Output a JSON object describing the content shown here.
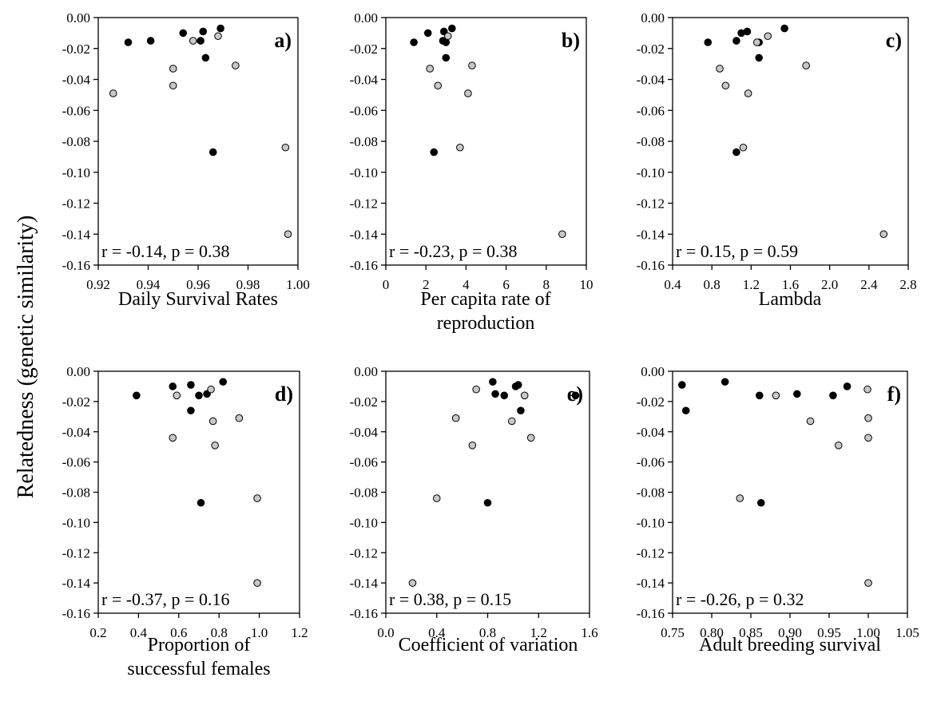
{
  "figure": {
    "y_axis_label": "Relatedness (genetic similarity)"
  },
  "chart_data": [
    {
      "type": "scatter",
      "panel": "a)",
      "xlabel": "Daily Survival Rates",
      "ylabel": "Relatedness (genetic similarity)",
      "xlim": [
        0.92,
        1.0
      ],
      "ylim": [
        -0.16,
        0.0
      ],
      "xticks": [
        "0.92",
        "0.94",
        "0.96",
        "0.98",
        "1.00"
      ],
      "yticks": [
        "0.00",
        "-0.02",
        "-0.04",
        "-0.06",
        "-0.08",
        "-0.10",
        "-0.12",
        "-0.14",
        "-0.16"
      ],
      "stat": "r  = -0.14, p = 0.38",
      "series": [
        {
          "color": "#000000",
          "points": [
            [
              0.932,
              -0.016
            ],
            [
              0.941,
              -0.015
            ],
            [
              0.954,
              -0.01
            ],
            [
              0.961,
              -0.015
            ],
            [
              0.962,
              -0.009
            ],
            [
              0.963,
              -0.026
            ],
            [
              0.966,
              -0.087
            ],
            [
              0.969,
              -0.007
            ]
          ]
        },
        {
          "color": "#c8c8c8",
          "points": [
            [
              0.926,
              -0.049
            ],
            [
              0.95,
              -0.033
            ],
            [
              0.95,
              -0.044
            ],
            [
              0.958,
              -0.015
            ],
            [
              0.968,
              -0.012
            ],
            [
              0.975,
              -0.031
            ],
            [
              0.995,
              -0.084
            ],
            [
              0.996,
              -0.14
            ]
          ]
        }
      ]
    },
    {
      "type": "scatter",
      "panel": "b)",
      "xlabel": "Per capita rate of reproduction",
      "xlim": [
        0,
        10
      ],
      "ylim": [
        -0.16,
        0.0
      ],
      "xticks": [
        "0",
        "2",
        "4",
        "6",
        "8",
        "10"
      ],
      "yticks": [
        "0.00",
        "-0.02",
        "-0.04",
        "-0.06",
        "-0.08",
        "-0.10",
        "-0.12",
        "-0.14",
        "-0.16"
      ],
      "stat": "r  = -0.23, p = 0.38",
      "series": [
        {
          "color": "#000000",
          "points": [
            [
              1.4,
              -0.016
            ],
            [
              2.1,
              -0.01
            ],
            [
              2.4,
              -0.087
            ],
            [
              2.85,
              -0.015
            ],
            [
              2.9,
              -0.009
            ],
            [
              3.0,
              -0.016
            ],
            [
              3.0,
              -0.026
            ],
            [
              3.3,
              -0.007
            ]
          ]
        },
        {
          "color": "#c8c8c8",
          "points": [
            [
              2.2,
              -0.033
            ],
            [
              2.6,
              -0.044
            ],
            [
              3.1,
              -0.012
            ],
            [
              3.7,
              -0.084
            ],
            [
              4.1,
              -0.049
            ],
            [
              4.3,
              -0.031
            ],
            [
              8.8,
              -0.14
            ]
          ]
        }
      ]
    },
    {
      "type": "scatter",
      "panel": "c)",
      "xlabel": "Lambda",
      "xlim": [
        0.4,
        2.8
      ],
      "ylim": [
        -0.16,
        0.0
      ],
      "xticks": [
        "0.4",
        "0.8",
        "1.2",
        "1.6",
        "2.0",
        "2.4",
        "2.8"
      ],
      "yticks": [
        "0.00",
        "-0.02",
        "-0.04",
        "-0.06",
        "-0.08",
        "-0.10",
        "-0.12",
        "-0.14",
        "-0.16"
      ],
      "stat": "r  = 0.15, p = 0.59",
      "series": [
        {
          "color": "#000000",
          "points": [
            [
              0.76,
              -0.016
            ],
            [
              1.05,
              -0.015
            ],
            [
              1.05,
              -0.087
            ],
            [
              1.1,
              -0.01
            ],
            [
              1.16,
              -0.009
            ],
            [
              1.28,
              -0.016
            ],
            [
              1.28,
              -0.026
            ],
            [
              1.54,
              -0.007
            ]
          ]
        },
        {
          "color": "#c8c8c8",
          "points": [
            [
              0.88,
              -0.033
            ],
            [
              0.94,
              -0.044
            ],
            [
              1.12,
              -0.084
            ],
            [
              1.17,
              -0.049
            ],
            [
              1.26,
              -0.016
            ],
            [
              1.37,
              -0.012
            ],
            [
              1.76,
              -0.031
            ],
            [
              2.55,
              -0.14
            ]
          ]
        }
      ]
    },
    {
      "type": "scatter",
      "panel": "d)",
      "xlabel": "Proportion of successful females",
      "xlim": [
        0.2,
        1.2
      ],
      "ylim": [
        -0.16,
        0.0
      ],
      "xticks": [
        "0.2",
        "0.4",
        "0.6",
        "0.8",
        "1.0",
        "1.2"
      ],
      "yticks": [
        "0.00",
        "-0.02",
        "-0.04",
        "-0.06",
        "-0.08",
        "-0.10",
        "-0.12",
        "-0.14",
        "-0.16"
      ],
      "stat": "r  = -0.37, p = 0.16",
      "series": [
        {
          "color": "#000000",
          "points": [
            [
              0.39,
              -0.016
            ],
            [
              0.57,
              -0.01
            ],
            [
              0.66,
              -0.009
            ],
            [
              0.66,
              -0.026
            ],
            [
              0.7,
              -0.016
            ],
            [
              0.71,
              -0.087
            ],
            [
              0.74,
              -0.015
            ],
            [
              0.82,
              -0.007
            ]
          ]
        },
        {
          "color": "#c8c8c8",
          "points": [
            [
              0.57,
              -0.044
            ],
            [
              0.59,
              -0.016
            ],
            [
              0.76,
              -0.012
            ],
            [
              0.77,
              -0.033
            ],
            [
              0.78,
              -0.049
            ],
            [
              0.9,
              -0.031
            ],
            [
              0.99,
              -0.084
            ],
            [
              0.99,
              -0.14
            ]
          ]
        }
      ]
    },
    {
      "type": "scatter",
      "panel": "e)",
      "xlabel": "Coefficient of variation",
      "xlim": [
        0.0,
        1.6
      ],
      "ylim": [
        -0.16,
        0.0
      ],
      "xticks": [
        "0.0",
        "0.4",
        "0.8",
        "1.2",
        "1.6"
      ],
      "yticks": [
        "0.00",
        "-0.02",
        "-0.04",
        "-0.06",
        "-0.08",
        "-0.10",
        "-0.12",
        "-0.14",
        "-0.16"
      ],
      "stat": "r  = 0.38, p = 0.15",
      "series": [
        {
          "color": "#000000",
          "points": [
            [
              0.8,
              -0.087
            ],
            [
              0.84,
              -0.007
            ],
            [
              0.86,
              -0.015
            ],
            [
              0.93,
              -0.016
            ],
            [
              1.02,
              -0.01
            ],
            [
              1.04,
              -0.009
            ],
            [
              1.06,
              -0.026
            ],
            [
              1.49,
              -0.016
            ]
          ]
        },
        {
          "color": "#c8c8c8",
          "points": [
            [
              0.21,
              -0.14
            ],
            [
              0.4,
              -0.084
            ],
            [
              0.55,
              -0.031
            ],
            [
              0.68,
              -0.049
            ],
            [
              0.71,
              -0.012
            ],
            [
              0.99,
              -0.033
            ],
            [
              1.09,
              -0.016
            ],
            [
              1.14,
              -0.044
            ]
          ]
        }
      ]
    },
    {
      "type": "scatter",
      "panel": "f)",
      "xlabel": "Adult breeding survival",
      "xlim": [
        0.75,
        1.05
      ],
      "ylim": [
        -0.16,
        0.0
      ],
      "xticks": [
        "0.75",
        "0.80",
        "0.85",
        "0.90",
        "0.95",
        "1.00",
        "1.05"
      ],
      "yticks": [
        "0.00",
        "-0.02",
        "-0.04",
        "-0.06",
        "-0.08",
        "-0.10",
        "-0.12",
        "-0.14",
        "-0.16"
      ],
      "stat": "r  = -0.26, p = 0.32",
      "series": [
        {
          "color": "#000000",
          "points": [
            [
              0.762,
              -0.009
            ],
            [
              0.767,
              -0.026
            ],
            [
              0.817,
              -0.007
            ],
            [
              0.861,
              -0.016
            ],
            [
              0.863,
              -0.087
            ],
            [
              0.909,
              -0.015
            ],
            [
              0.955,
              -0.016
            ],
            [
              0.973,
              -0.01
            ]
          ]
        },
        {
          "color": "#c8c8c8",
          "points": [
            [
              0.836,
              -0.084
            ],
            [
              0.882,
              -0.016
            ],
            [
              0.926,
              -0.033
            ],
            [
              0.962,
              -0.049
            ],
            [
              0.999,
              -0.012
            ],
            [
              1.0,
              -0.031
            ],
            [
              1.0,
              -0.044
            ],
            [
              1.0,
              -0.14
            ]
          ]
        }
      ]
    }
  ]
}
